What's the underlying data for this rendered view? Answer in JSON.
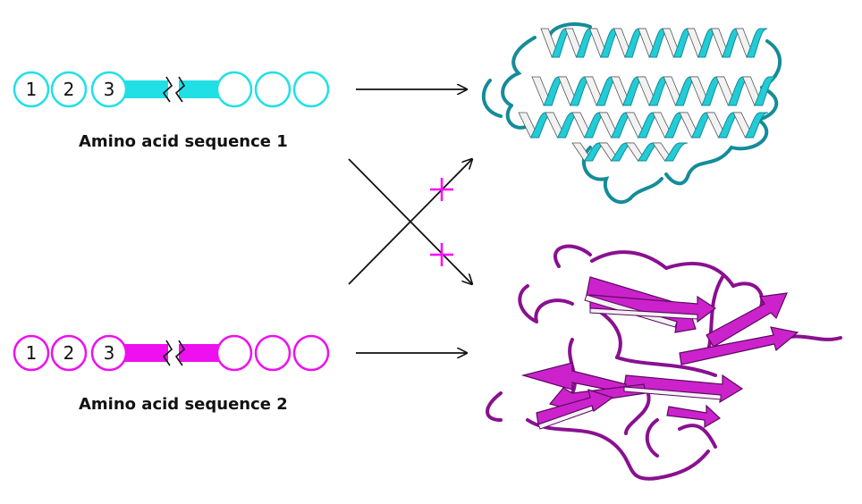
{
  "sequence_1": {
    "label": "Amino acid sequence 1",
    "residue_numbers": [
      "1",
      "2",
      "3"
    ],
    "color": "#20E0E6",
    "fold": "alpha-helical bundle"
  },
  "sequence_2": {
    "label": "Amino acid sequence 2",
    "residue_numbers": [
      "1",
      "2",
      "3"
    ],
    "color": "#EE10EE",
    "fold": "beta-sheet sandwich"
  },
  "colors": {
    "helix": "#22CCD6",
    "helix_dark": "#148C99",
    "helix_back": "#F2F2F2",
    "sheet": "#CC22CC",
    "sheet_dark": "#8A1090",
    "forbidden_mark": "#FF00FF",
    "arrow": "#111111"
  },
  "icons": {
    "break_symbol": "double-zigzag-break-icon",
    "forbidden_mark": "plus-cross-icon"
  }
}
